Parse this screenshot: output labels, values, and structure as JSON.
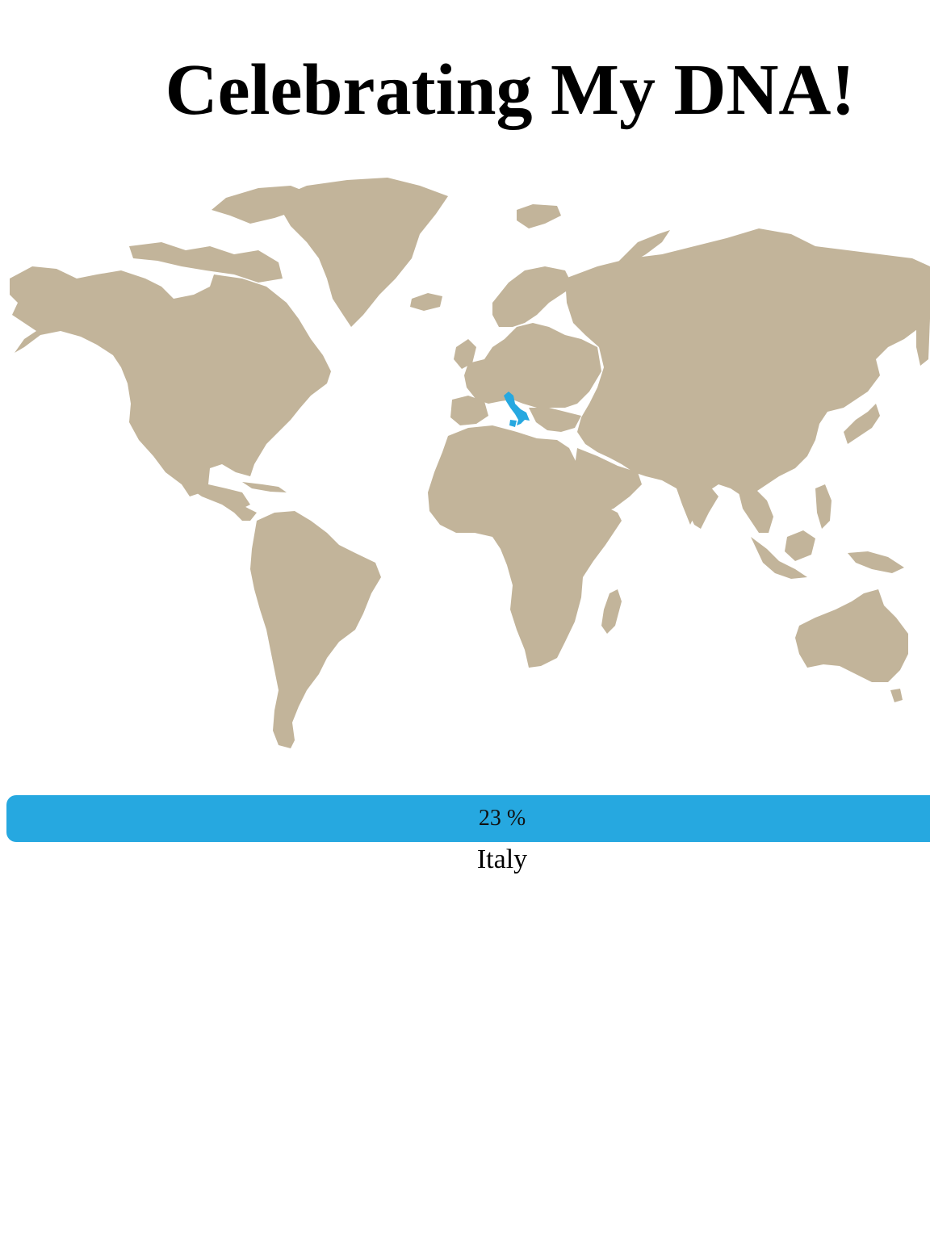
{
  "page": {
    "title": "Celebrating My DNA!"
  },
  "colors": {
    "land": "#c2b49a",
    "highlight": "#26a8e0",
    "background": "#ffffff"
  },
  "ancestry": {
    "percent_label": "23 %",
    "percent_value": 23,
    "country": "Italy"
  }
}
